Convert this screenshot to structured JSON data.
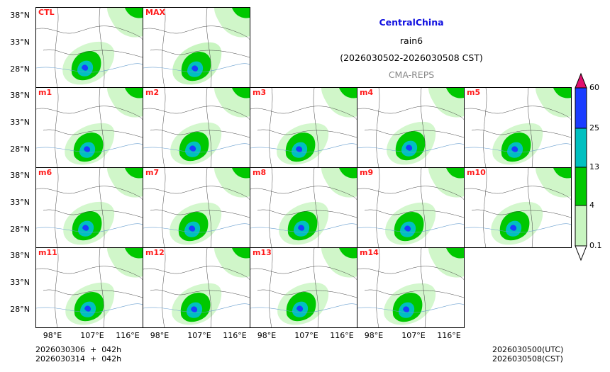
{
  "header": {
    "region": "CentralChina",
    "variable": "rain6",
    "period": "(2026030502-2026030508 CST)",
    "model": "CMA-REPS"
  },
  "panels": [
    "CTL",
    "MAX",
    "m1",
    "m2",
    "m3",
    "m4",
    "m5",
    "m6",
    "m7",
    "m8",
    "m9",
    "m10",
    "m11",
    "m12",
    "m13",
    "m14"
  ],
  "axes": {
    "y_ticks": [
      "38°N",
      "33°N",
      "28°N"
    ],
    "x_ticks": [
      "98°E",
      "107°E",
      "116°E"
    ]
  },
  "colorbar": {
    "levels": [
      "0.1",
      "4",
      "13",
      "25",
      "60"
    ],
    "colors": [
      "#ffffff",
      "#c8f5c0",
      "#00c800",
      "#00c0c0",
      "#1a3cff",
      "#e0106e"
    ]
  },
  "footer": {
    "left_line1": "2026030306  +  042h",
    "left_line2": "2026030314  +  042h",
    "right_line1": "2026030500(UTC)",
    "right_line2": "2026030508(CST)"
  }
}
